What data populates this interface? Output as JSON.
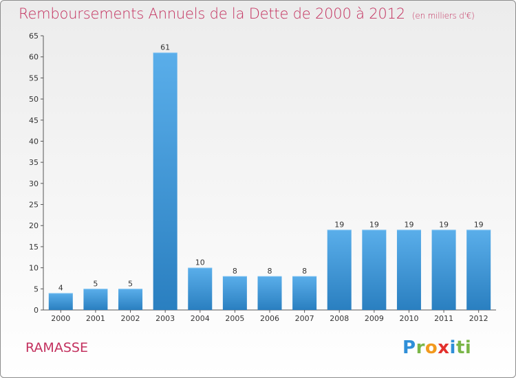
{
  "header": {
    "title": "Remboursements Annuels de la Dette de 2000 à 2012",
    "unit": "(en milliers d'€)"
  },
  "commune": "RAMASSE",
  "logo": {
    "letters": [
      "P",
      "r",
      "o",
      "x",
      "i",
      "ti"
    ]
  },
  "colors": {
    "title": "#c3305e",
    "bar_top": "#5aaeea",
    "bar_bottom": "#2a7fc0",
    "axis": "#555555"
  },
  "chart_data": {
    "type": "bar",
    "title": "Remboursements Annuels de la Dette de 2000 à 2012",
    "categories": [
      "2000",
      "2001",
      "2002",
      "2003",
      "2004",
      "2005",
      "2006",
      "2007",
      "2008",
      "2009",
      "2010",
      "2011",
      "2012"
    ],
    "values": [
      4,
      5,
      5,
      61,
      10,
      8,
      8,
      8,
      19,
      19,
      19,
      19,
      19
    ],
    "ylim": [
      0,
      65
    ],
    "yticks": [
      0,
      5,
      10,
      15,
      20,
      25,
      30,
      35,
      40,
      45,
      50,
      55,
      60,
      65
    ],
    "grid": false,
    "xlabel": "",
    "ylabel": ""
  }
}
